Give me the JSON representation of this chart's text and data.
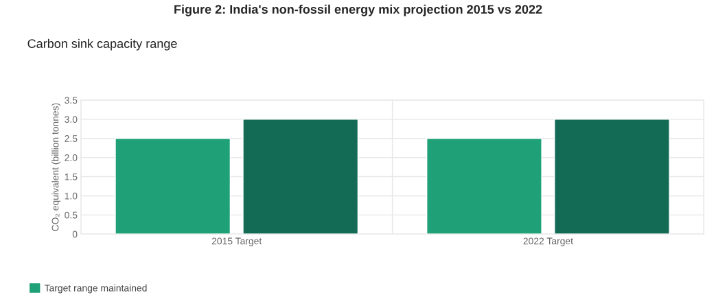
{
  "chart_data": {
    "type": "bar",
    "title": "Figure 2: India's non-fossil energy mix projection 2015 vs 2022",
    "subtitle": "Carbon sink capacity range",
    "ylabel": "CO₂ equivalent (billion tonnes)",
    "categories": [
      "2015 Target",
      "2022 Target"
    ],
    "series": [
      {
        "name": "Target range maintained",
        "color": "#20a077",
        "values": [
          2.5,
          2.5
        ]
      },
      {
        "color": "#136b56",
        "values": [
          3.0,
          3.0
        ]
      }
    ],
    "ylim": [
      0,
      3.5
    ],
    "yticks": [
      {
        "value": 0,
        "label": "0"
      },
      0.5,
      {
        "value": 1,
        "label": "1.0"
      },
      1.5,
      {
        "value": 2,
        "label": "2.0"
      },
      2.5,
      {
        "value": 3,
        "label": "3.0"
      },
      3.5
    ],
    "grid": true,
    "legend": "bottom left"
  }
}
